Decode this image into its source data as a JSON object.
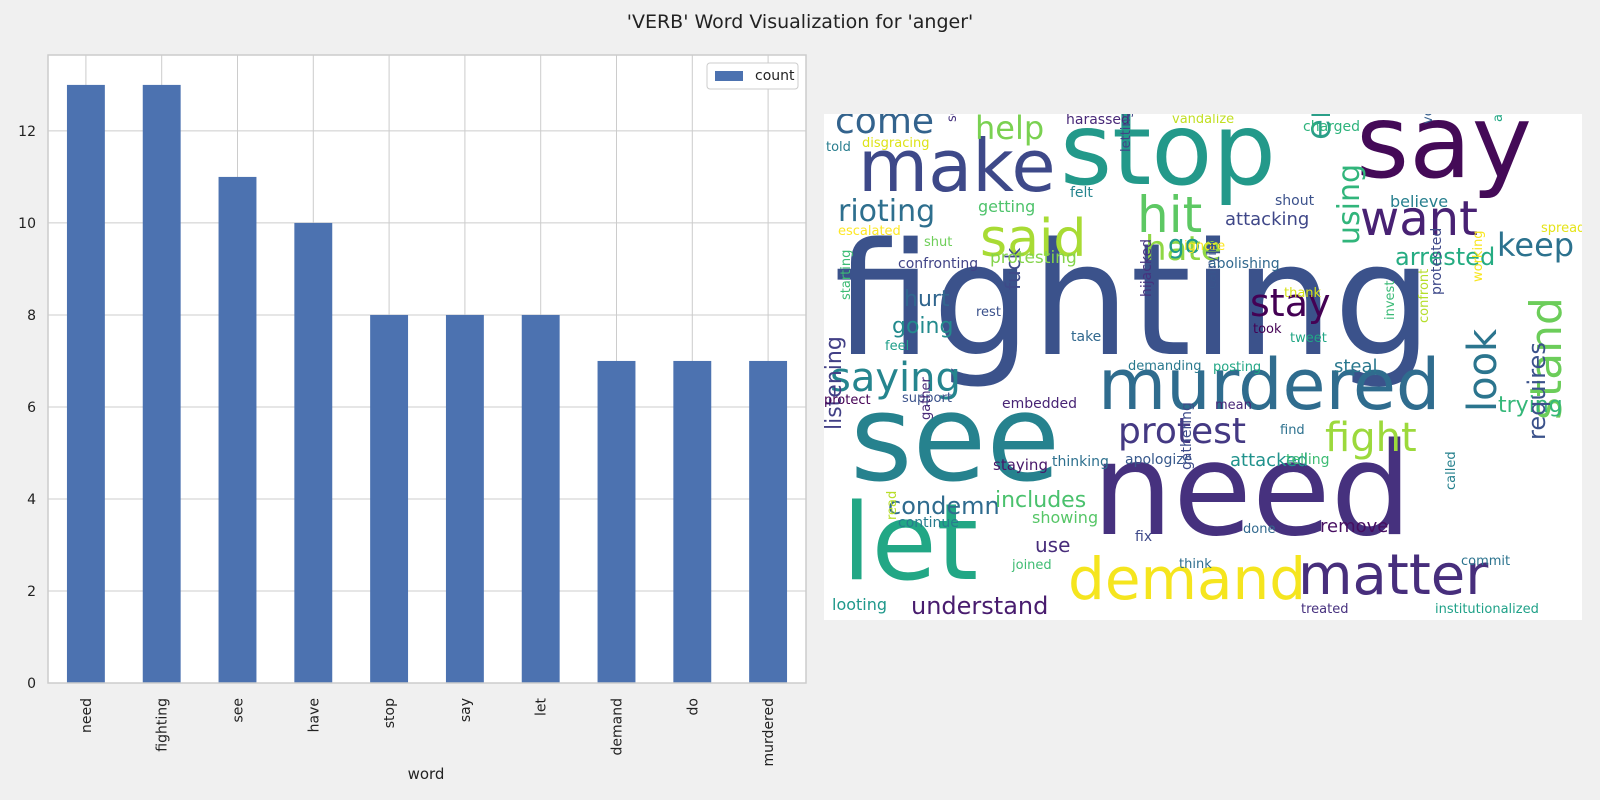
{
  "figure": {
    "suptitle": "'VERB' Word Visualization for 'anger'"
  },
  "chart_data": [
    {
      "type": "bar",
      "title": "",
      "xlabel": "word",
      "ylabel": "",
      "categories": [
        "need",
        "fighting",
        "see",
        "have",
        "stop",
        "say",
        "let",
        "demand",
        "do",
        "murdered"
      ],
      "series": [
        {
          "name": "count",
          "values": [
            13,
            13,
            11,
            10,
            8,
            8,
            8,
            7,
            7,
            7
          ]
        }
      ],
      "ylim": [
        0,
        13.65
      ],
      "yticks": [
        0,
        2,
        4,
        6,
        8,
        10,
        12
      ],
      "grid": true,
      "legend": "top-right",
      "colors": {
        "bar": "#4c72b0",
        "grid": "#cccccc",
        "panel": "#ffffff",
        "figure": "#f0f0f0"
      }
    },
    {
      "type": "wordcloud",
      "colormap": "viridis",
      "background": "#ffffff",
      "words": [
        {
          "text": "fighting",
          "color": "#3b528b",
          "vertical": false
        },
        {
          "text": "need",
          "color": "#46317e",
          "vertical": false
        },
        {
          "text": "see",
          "color": "#26828e",
          "vertical": false
        },
        {
          "text": "stop",
          "color": "#23998a",
          "vertical": false
        },
        {
          "text": "say",
          "color": "#440a57",
          "vertical": false
        },
        {
          "text": "let",
          "color": "#22a785",
          "vertical": false
        },
        {
          "text": "murdered",
          "color": "#2f6c8e",
          "vertical": false
        },
        {
          "text": "make",
          "color": "#3e4989",
          "vertical": false
        },
        {
          "text": "demand",
          "color": "#f5e51e",
          "vertical": false
        },
        {
          "text": "matter",
          "color": "#472e7c",
          "vertical": false
        },
        {
          "text": "end",
          "color": "#2a9f88",
          "vertical": true
        },
        {
          "text": "stand",
          "color": "#6ccd5a",
          "vertical": true
        },
        {
          "text": "said",
          "color": "#a8db34",
          "vertical": false
        },
        {
          "text": "hit",
          "color": "#5dc863",
          "vertical": false
        },
        {
          "text": "want",
          "color": "#482173",
          "vertical": false
        },
        {
          "text": "look",
          "color": "#2b758e",
          "vertical": true
        },
        {
          "text": "protest",
          "color": "#443983",
          "vertical": false
        },
        {
          "text": "fight",
          "color": "#9cd93c",
          "vertical": false
        },
        {
          "text": "come",
          "color": "#33638d",
          "vertical": false
        },
        {
          "text": "saying",
          "color": "#25858e",
          "vertical": false
        },
        {
          "text": "rioting",
          "color": "#2e6f8e",
          "vertical": false
        },
        {
          "text": "stay",
          "color": "#440154",
          "vertical": false
        },
        {
          "text": "hate",
          "color": "#8fd744",
          "vertical": false
        },
        {
          "text": "help",
          "color": "#7ad151",
          "vertical": false
        },
        {
          "text": "keep",
          "color": "#2c728e",
          "vertical": false
        },
        {
          "text": "using",
          "color": "#31b57b",
          "vertical": true
        },
        {
          "text": "arrested",
          "color": "#25ac82",
          "vertical": false
        },
        {
          "text": "trying",
          "color": "#35b779",
          "vertical": false
        },
        {
          "text": "requires",
          "color": "#3b528b",
          "vertical": true
        },
        {
          "text": "condemn",
          "color": "#2f6b8e",
          "vertical": false
        },
        {
          "text": "includes",
          "color": "#4ac16d",
          "vertical": false
        },
        {
          "text": "understand",
          "color": "#481c6e",
          "vertical": false
        },
        {
          "text": "listening",
          "color": "#424086",
          "vertical": true
        },
        {
          "text": "hurt",
          "color": "#31668e",
          "vertical": false
        },
        {
          "text": "going",
          "color": "#238a8d",
          "vertical": false
        },
        {
          "text": "fuck",
          "color": "#3e4a89",
          "vertical": true
        },
        {
          "text": "go",
          "color": "#1f9a8a",
          "vertical": false
        },
        {
          "text": "use",
          "color": "#472c7a",
          "vertical": false
        },
        {
          "text": "remove",
          "color": "#470e61",
          "vertical": false
        },
        {
          "text": "attacked",
          "color": "#20928c",
          "vertical": false
        },
        {
          "text": "steal",
          "color": "#2a788e",
          "vertical": false
        },
        {
          "text": "attacking",
          "color": "#3f4788",
          "vertical": false
        },
        {
          "text": "getting",
          "color": "#4ec36b",
          "vertical": false
        },
        {
          "text": "protesting",
          "color": "#84d44b",
          "vertical": false
        },
        {
          "text": "looting",
          "color": "#1f988b",
          "vertical": false
        },
        {
          "text": "showing",
          "color": "#56c667",
          "vertical": false
        },
        {
          "text": "believe",
          "color": "#277f8e",
          "vertical": false
        },
        {
          "text": "staying",
          "color": "#481769",
          "vertical": false
        },
        {
          "text": "thinking",
          "color": "#2d708e",
          "vertical": false
        },
        {
          "text": "apologize",
          "color": "#38598c",
          "vertical": false
        },
        {
          "text": "telling",
          "color": "#3dbc74",
          "vertical": false
        },
        {
          "text": "confronting",
          "color": "#414487",
          "vertical": false
        },
        {
          "text": "abolishing",
          "color": "#31688e",
          "vertical": false
        },
        {
          "text": "embedded",
          "color": "#482475",
          "vertical": false
        },
        {
          "text": "continue",
          "color": "#287c8e",
          "vertical": false
        },
        {
          "text": "shout",
          "color": "#3b518b",
          "vertical": false
        },
        {
          "text": "felt",
          "color": "#25848e",
          "vertical": false
        },
        {
          "text": "shut",
          "color": "#6ece58",
          "vertical": false
        },
        {
          "text": "escalated",
          "color": "#fde725",
          "vertical": false
        },
        {
          "text": "told",
          "color": "#287d8e",
          "vertical": false
        },
        {
          "text": "disgracing",
          "color": "#dde318",
          "vertical": false
        },
        {
          "text": "harassed",
          "color": "#482878",
          "vertical": false
        },
        {
          "text": "vandalize",
          "color": "#c2df23",
          "vertical": false
        },
        {
          "text": "charged",
          "color": "#2eb37c",
          "vertical": false
        },
        {
          "text": "seen",
          "color": "#46337f",
          "vertical": true
        },
        {
          "text": "letting",
          "color": "#414487",
          "vertical": true
        },
        {
          "text": "vote",
          "color": "#355f8d",
          "vertical": true
        },
        {
          "text": "addressing",
          "color": "#22a884",
          "vertical": true
        },
        {
          "text": "spread",
          "color": "#e5e419",
          "vertical": false
        },
        {
          "text": "ignore",
          "color": "#fde725",
          "vertical": false
        },
        {
          "text": "thank",
          "color": "#d8e219",
          "vertical": false
        },
        {
          "text": "working",
          "color": "#f8e621",
          "vertical": true
        },
        {
          "text": "confront",
          "color": "#b5de2b",
          "vertical": true
        },
        {
          "text": "protested",
          "color": "#3e4989",
          "vertical": true
        },
        {
          "text": "invest",
          "color": "#3aba76",
          "vertical": true
        },
        {
          "text": "took",
          "color": "#440154",
          "vertical": false
        },
        {
          "text": "tweet",
          "color": "#21a685",
          "vertical": false
        },
        {
          "text": "take",
          "color": "#31688e",
          "vertical": false
        },
        {
          "text": "carrying",
          "color": "#39558c",
          "vertical": true
        },
        {
          "text": "hijacked",
          "color": "#46327e",
          "vertical": true
        },
        {
          "text": "demanding",
          "color": "#29798e",
          "vertical": false
        },
        {
          "text": "posting",
          "color": "#22a785",
          "vertical": false
        },
        {
          "text": "rest",
          "color": "#3b518b",
          "vertical": false
        },
        {
          "text": "feel",
          "color": "#1f9e89",
          "vertical": false
        },
        {
          "text": "starting",
          "color": "#3dbc74",
          "vertical": true
        },
        {
          "text": "protect",
          "color": "#440154",
          "vertical": false
        },
        {
          "text": "support",
          "color": "#3b528b",
          "vertical": false
        },
        {
          "text": "mean",
          "color": "#482677",
          "vertical": false
        },
        {
          "text": "find",
          "color": "#2c718e",
          "vertical": false
        },
        {
          "text": "gather",
          "color": "#482878",
          "vertical": true
        },
        {
          "text": "gathering",
          "color": "#3e4c8a",
          "vertical": true
        },
        {
          "text": "called",
          "color": "#26818e",
          "vertical": true
        },
        {
          "text": "read",
          "color": "#b8de29",
          "vertical": true
        },
        {
          "text": "fix",
          "color": "#3e4989",
          "vertical": false
        },
        {
          "text": "done",
          "color": "#31688e",
          "vertical": false
        },
        {
          "text": "joined",
          "color": "#3fbc73",
          "vertical": false
        },
        {
          "text": "think",
          "color": "#2e6e8e",
          "vertical": false
        },
        {
          "text": "commit",
          "color": "#2c738e",
          "vertical": false
        },
        {
          "text": "treated",
          "color": "#46307e",
          "vertical": false
        },
        {
          "text": "institutionalized",
          "color": "#1fa188",
          "vertical": false
        }
      ]
    }
  ]
}
